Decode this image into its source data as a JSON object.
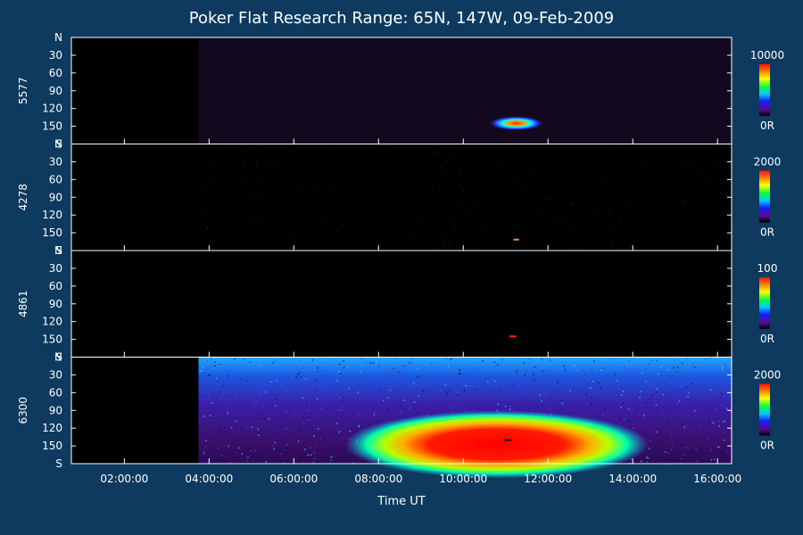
{
  "chart_data": {
    "type": "heatmap",
    "title": "Poker Flat Research Range: 65N, 147W, 09-Feb-2009",
    "xlabel": "Time UT",
    "x_ticks": [
      "02:00:00",
      "04:00:00",
      "06:00:00",
      "08:00:00",
      "10:00:00",
      "12:00:00",
      "14:00:00",
      "16:00:00"
    ],
    "x_range": [
      "00:45:00",
      "16:20:00"
    ],
    "data_start": "03:45:00",
    "y_ticks": [
      "N",
      "30",
      "60",
      "90",
      "120",
      "150",
      "S"
    ],
    "y_range": [
      0,
      180
    ],
    "colorbar_min_label": "0R",
    "panels": [
      {
        "wavelength": "5577",
        "scale_max": "10000",
        "peak_time": "11:15:00",
        "peak_angle": 145,
        "background": "dark violet"
      },
      {
        "wavelength": "4278",
        "scale_max": "2000",
        "peak_time": "11:15:00",
        "peak_angle": 160,
        "background": "speckled noise"
      },
      {
        "wavelength": "4861",
        "scale_max": "100",
        "peak_time": "11:10:00",
        "peak_angle": 145,
        "background": "black"
      },
      {
        "wavelength": "6300",
        "scale_max": "2000",
        "peak_time": "11:00:00",
        "peak_angle": 140,
        "background": "broad emission"
      }
    ]
  }
}
